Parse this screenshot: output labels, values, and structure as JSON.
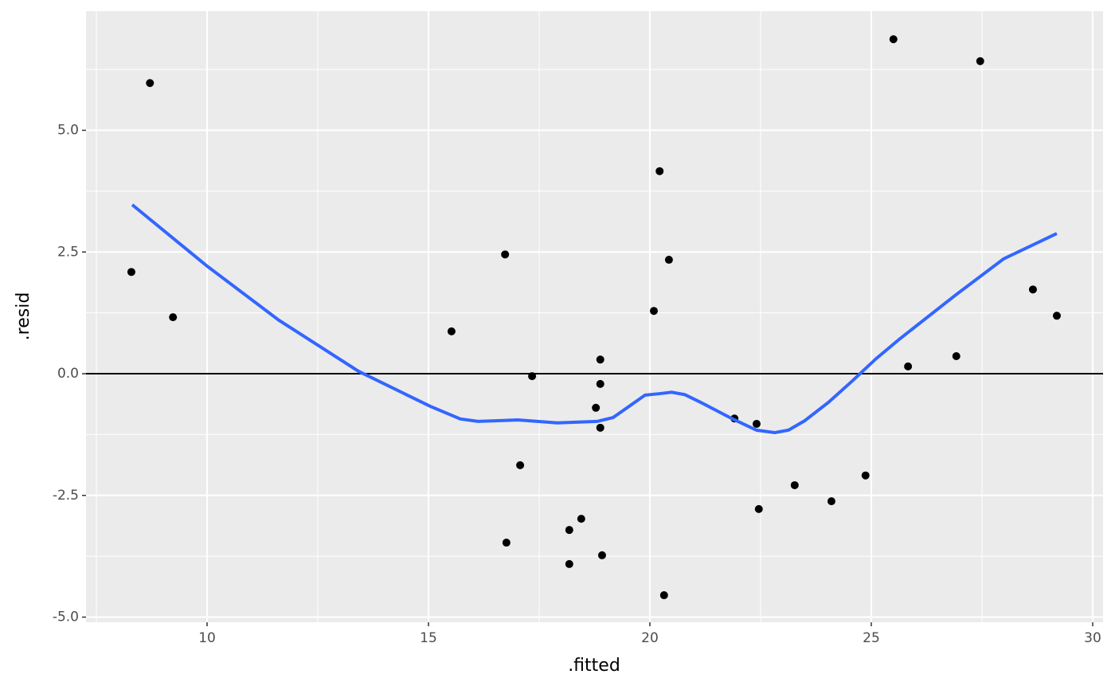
{
  "chart_data": {
    "type": "scatter",
    "x_label": ".fitted",
    "y_label": ".resid",
    "xlim": [
      7.266,
      30.234
    ],
    "ylim": [
      -5.106,
      7.447
    ],
    "xticks": [
      10,
      15,
      20,
      25,
      30
    ],
    "yticks": [
      {
        "value": -5,
        "label": "-5.0"
      },
      {
        "value": -2.5,
        "label": "-2.5"
      },
      {
        "value": 0,
        "label": "0.0"
      },
      {
        "value": 2.5,
        "label": "2.5"
      },
      {
        "value": 5,
        "label": "5.0"
      }
    ],
    "grid": true,
    "hline": 0,
    "points": {
      "color": "#000000",
      "x": [
        8.29,
        8.71,
        9.23,
        15.52,
        16.73,
        16.76,
        17.07,
        17.34,
        18.18,
        18.18,
        18.45,
        18.78,
        18.88,
        18.88,
        18.88,
        18.92,
        20.09,
        20.22,
        20.32,
        20.43,
        21.91,
        22.41,
        22.46,
        23.27,
        24.1,
        24.87,
        25.5,
        25.83,
        26.92,
        27.46,
        28.65,
        29.19
      ],
      "y": [
        2.09,
        5.97,
        1.16,
        0.87,
        2.45,
        -3.47,
        -1.88,
        -0.05,
        -3.91,
        -3.21,
        -2.98,
        -0.7,
        0.29,
        -0.21,
        -1.11,
        -3.73,
        1.29,
        4.16,
        -4.55,
        2.34,
        -0.92,
        -1.03,
        -2.78,
        -2.29,
        -2.62,
        -2.09,
        6.87,
        0.15,
        0.36,
        6.42,
        1.73,
        1.19
      ]
    },
    "smooth": {
      "color": "#3366FF",
      "x": [
        8.31,
        10,
        11.62,
        13.42,
        15.04,
        15.72,
        16.12,
        17.01,
        17.91,
        18.81,
        19.17,
        19.53,
        19.89,
        20.22,
        20.49,
        20.79,
        21.15,
        21.87,
        22.41,
        22.82,
        23.13,
        23.49,
        24.03,
        24.57,
        25.11,
        25.65,
        26.91,
        27.99,
        29.19
      ],
      "y": [
        3.47,
        2.21,
        1.1,
        0.05,
        -0.67,
        -0.93,
        -0.98,
        -0.95,
        -1.01,
        -0.98,
        -0.9,
        -0.67,
        -0.44,
        -0.41,
        -0.38,
        -0.43,
        -0.59,
        -0.93,
        -1.16,
        -1.21,
        -1.16,
        -0.97,
        -0.59,
        -0.15,
        0.31,
        0.72,
        1.62,
        2.36,
        2.88
      ]
    }
  }
}
